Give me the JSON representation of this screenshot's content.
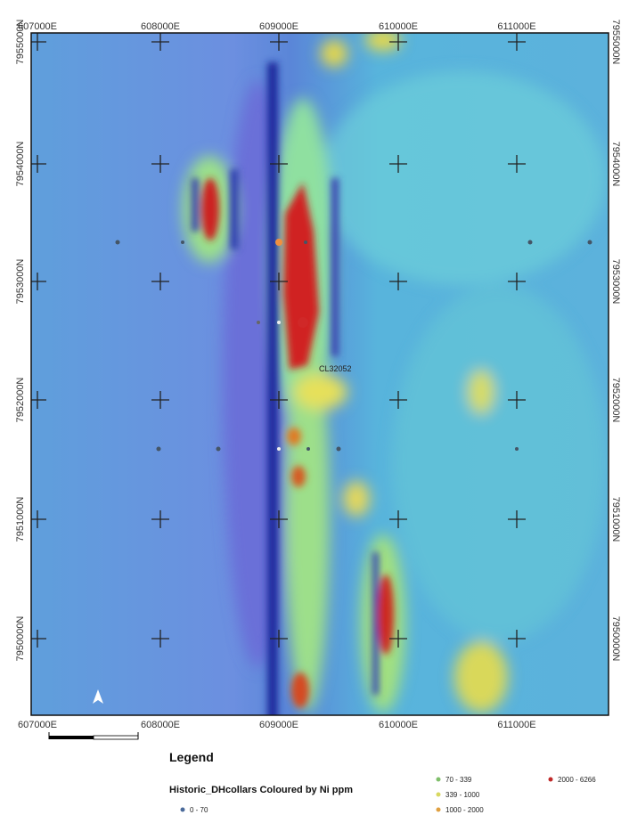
{
  "map": {
    "x_labels_top": [
      "607000E",
      "608000E",
      "609000E",
      "610000E",
      "611000E"
    ],
    "x_labels_bottom": [
      "607000E",
      "608000E",
      "609000E",
      "610000E",
      "611000E"
    ],
    "y_labels_left": [
      "7955000N",
      "7954000N",
      "7953000N",
      "7952000N",
      "7951000N",
      "7950000N"
    ],
    "y_labels_right": [
      "7955000N",
      "7954000N",
      "7953000N",
      "7952000N",
      "7951000N",
      "7950000N"
    ],
    "annotation": "CL32052"
  },
  "legend": {
    "title": "Legend",
    "layer": "Historic_DHcollars Coloured by Ni ppm",
    "classes": [
      "0 - 70",
      "70 - 339",
      "339 - 1000",
      "1000 - 2000",
      "2000 - 6266"
    ]
  }
}
